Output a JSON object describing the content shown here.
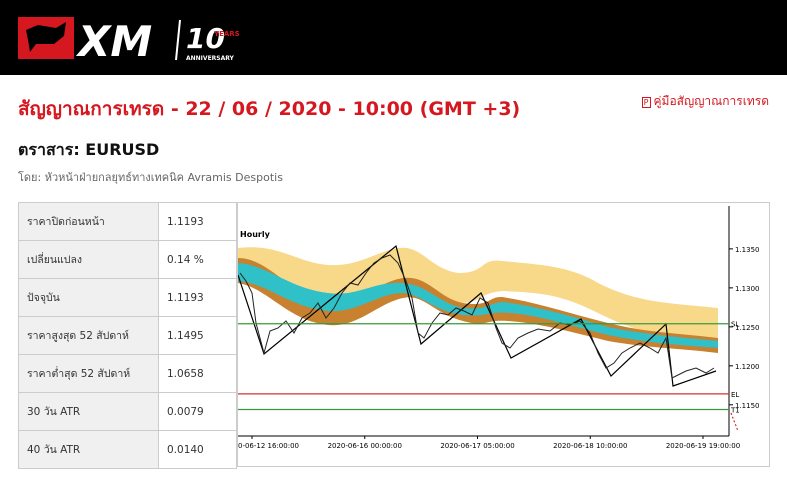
{
  "header": {
    "logo": "XM",
    "anniversary_number": "10",
    "anniversary_years": "YEARS",
    "anniversary_label": "ANNIVERSARY"
  },
  "title": "สัญญาณการเทรด - 22 / 06 / 2020 - 10:00 (GMT +3)",
  "guide_link": "คู่มือสัญญาณการเทรด",
  "instrument": "ตราสาร: EURUSD",
  "author": "โดย: หัวหน้าฝ่ายกลยุทธ์ทางเทคนิค Avramis Despotis",
  "table": {
    "rows": [
      [
        "ราคาปิดก่อนหน้า",
        "1.1193"
      ],
      [
        "เปลี่ยนแปลง",
        "0.14 %"
      ],
      [
        "ปัจจุบัน",
        "1.1193"
      ],
      [
        "ราคาสูงสุด 52 สัปดาห์",
        "1.1495"
      ],
      [
        "ราคาต่ำสุด 52 สัปดาห์",
        "1.0658"
      ],
      [
        "30 วัน ATR",
        "0.0079"
      ],
      [
        "40 วัน ATR",
        "0.0140"
      ]
    ]
  },
  "chart_data": {
    "type": "candlestick",
    "title": "Hourly",
    "x_labels": [
      "0-06-12 16:00:00",
      "2020-06-16 00:00:00",
      "2020-06-17 05:00:00",
      "2020-06-18 10:00:00",
      "2020-06-19 19:00:00"
    ],
    "ylim": [
      1.111,
      1.1405
    ],
    "yticks": [
      {
        "value": 1.135,
        "label": "1.1350"
      },
      {
        "value": 1.13,
        "label": "1.1300"
      },
      {
        "value": 1.125,
        "label": "1.1250"
      },
      {
        "value": 1.12,
        "label": "1.1200"
      },
      {
        "value": 1.115,
        "label": "1.1150"
      }
    ],
    "levels": [
      {
        "name": "SL",
        "value": 1.1254,
        "color": "#3a9a3a"
      },
      {
        "name": "EL",
        "value": 1.1164,
        "color": "#d43030"
      },
      {
        "name": "T1",
        "value": 1.1144,
        "color": "#3a9a3a"
      }
    ]
  }
}
